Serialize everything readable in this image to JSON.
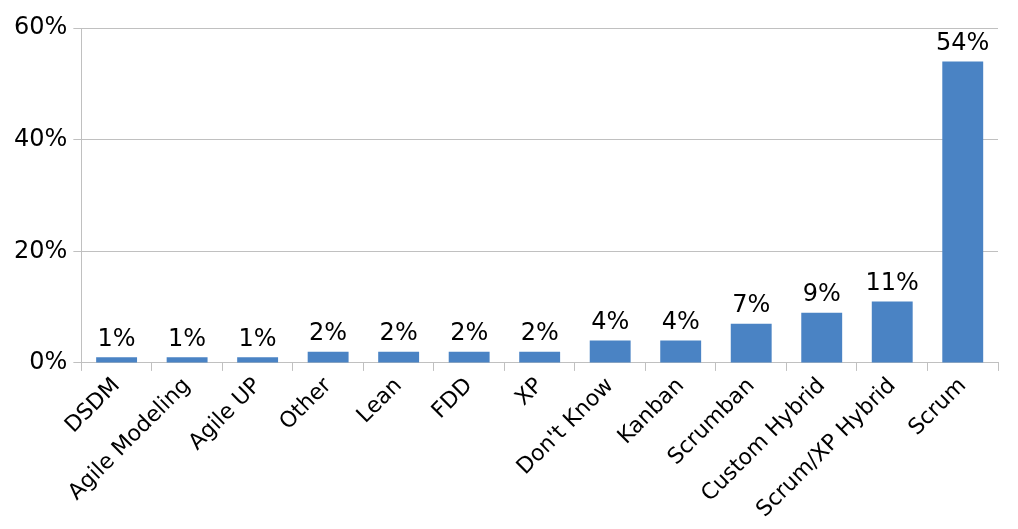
{
  "chart_data": {
    "type": "bar",
    "categories": [
      "DSDM",
      "Agile Modeling",
      "Agile UP",
      "Other",
      "Lean",
      "FDD",
      "XP",
      "Don't Know",
      "Kanban",
      "Scrumban",
      "Custom Hybrid",
      "Scrum/XP Hybrid",
      "Scrum"
    ],
    "values": [
      1,
      1,
      1,
      2,
      2,
      2,
      2,
      4,
      4,
      7,
      9,
      11,
      54
    ],
    "value_labels": [
      "1%",
      "1%",
      "1%",
      "2%",
      "2%",
      "2%",
      "2%",
      "4%",
      "4%",
      "7%",
      "9%",
      "11%",
      "54%"
    ],
    "color": "#4a83c4",
    "ylim": [
      0,
      60
    ],
    "yticks": [
      {
        "value": 0,
        "label": "0%"
      },
      {
        "value": 20,
        "label": "20%"
      },
      {
        "value": 40,
        "label": "40%"
      },
      {
        "value": 60,
        "label": "60%"
      }
    ],
    "grid": "y"
  }
}
